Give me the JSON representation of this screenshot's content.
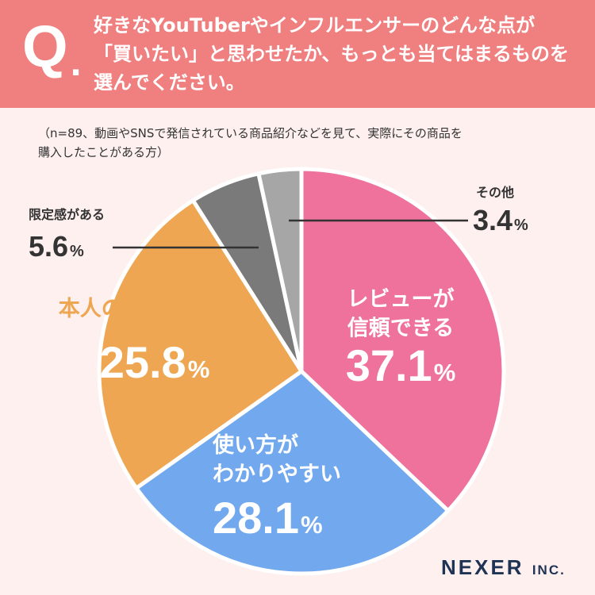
{
  "question": {
    "mark": "Q",
    "dot": ".",
    "lines": [
      "好きなYouTuberやインフルエンサーのどんな点が",
      "「買いたい」と思わせたか、もっとも当てはまるものを",
      "選んでください。"
    ]
  },
  "note": {
    "lines": [
      "（n=89、動画やSNSで発信されている商品紹介などを見て、実際にその商品を",
      "購入したことがある方）"
    ]
  },
  "chart_data": {
    "type": "pie",
    "unit": "%",
    "slices": [
      {
        "label_lines": [
          "レビューが",
          "信頼できる"
        ],
        "value": 37.1,
        "color": "#ee729c"
      },
      {
        "label_lines": [
          "使い方が",
          "わかりやすい"
        ],
        "value": 28.1,
        "color": "#72a9ee"
      },
      {
        "label_lines": [
          "本人のセンスが好き"
        ],
        "value": 25.8,
        "color": "#efa652"
      },
      {
        "label_lines": [
          "限定感がある"
        ],
        "value": 5.6,
        "color": "#7a7a7a"
      },
      {
        "label_lines": [
          "その他"
        ],
        "value": 3.4,
        "color": "#a6a6a6"
      }
    ]
  },
  "logo": {
    "name": "NEXER",
    "suffix": "INC."
  }
}
